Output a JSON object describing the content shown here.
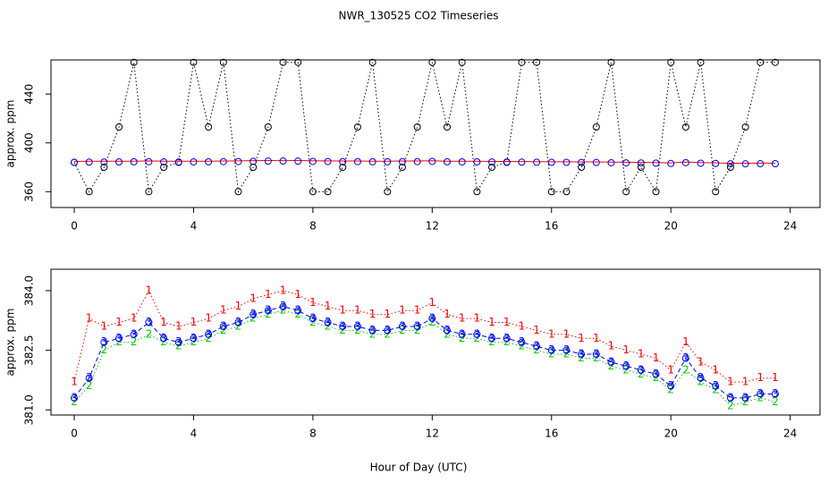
{
  "title": "NWR_130525  CO2 Timeseries",
  "xlabel": "Hour of Day (UTC)",
  "chart_data": [
    {
      "type": "scatter",
      "ylabel": "approx. ppm",
      "xlim": [
        -0.78,
        25.0
      ],
      "xticks": [
        0,
        4,
        8,
        12,
        16,
        20,
        24
      ],
      "ylim": [
        347,
        468
      ],
      "yticks": [
        360,
        400,
        440
      ],
      "x": [
        0,
        0.5,
        1,
        1.5,
        2,
        2.5,
        3,
        3.5,
        4,
        4.5,
        5,
        5.5,
        6,
        6.5,
        7,
        7.5,
        8,
        8.5,
        9,
        9.5,
        10,
        10.5,
        11,
        11.5,
        12,
        12.5,
        13,
        13.5,
        14,
        14.5,
        15,
        15.5,
        16,
        16.5,
        17,
        17.5,
        18,
        18.5,
        19,
        19.5,
        20,
        20.5,
        21,
        21.5,
        22,
        22.5,
        23,
        23.5
      ],
      "series": [
        {
          "color": "#000000",
          "line_style": "dotted",
          "point": "circle",
          "values": [
            384,
            360,
            380,
            413,
            466,
            360,
            380,
            384,
            466,
            413,
            466,
            360,
            380,
            413,
            466,
            466,
            360,
            360,
            380,
            413,
            466,
            360,
            380,
            413,
            466,
            413,
            466,
            360,
            380,
            384,
            466,
            466,
            360,
            360,
            380,
            413,
            466,
            360,
            380,
            360,
            466,
            413,
            466,
            360,
            380,
            413,
            466,
            466
          ]
        },
        {
          "color": "#ff0000",
          "line_style": "solid",
          "values": [
            384.8,
            384.9,
            384.9,
            385,
            385,
            385.2,
            385,
            385,
            384.9,
            385,
            385.1,
            385.2,
            385.4,
            385.5,
            385.6,
            385.5,
            385.3,
            385.2,
            385.1,
            385.1,
            385,
            385,
            385.1,
            385.1,
            385.3,
            385,
            384.9,
            384.9,
            384.8,
            384.8,
            384.7,
            384.6,
            384.5,
            384.5,
            384.4,
            384.4,
            384.2,
            384.1,
            384,
            383.9,
            383.6,
            384.3,
            383.8,
            383.6,
            383.3,
            383.3,
            383.4,
            383.4
          ]
        },
        {
          "color": "#0000ff",
          "point": "circle",
          "values": [
            384,
            384.2,
            384.3,
            384.4,
            384.5,
            384.6,
            384.4,
            384.3,
            384.4,
            384.5,
            384.6,
            384.7,
            384.9,
            385,
            385.1,
            385,
            384.8,
            384.7,
            384.6,
            384.6,
            384.5,
            384.5,
            384.6,
            384.6,
            384.8,
            384.5,
            384.4,
            384.4,
            384.3,
            384.3,
            384.2,
            384.1,
            384,
            384,
            383.9,
            383.9,
            383.7,
            383.6,
            383.5,
            383.4,
            383.1,
            383.8,
            383.3,
            383.1,
            382.8,
            382.8,
            382.9,
            382.9
          ]
        }
      ]
    },
    {
      "type": "line",
      "ylabel": "approx. ppm",
      "xlim": [
        -0.78,
        25.0
      ],
      "xticks": [
        0,
        4,
        8,
        12,
        16,
        20,
        24
      ],
      "ylim": [
        380.87,
        384.54
      ],
      "yticks": [
        {
          "value": 381,
          "label": "381.0"
        },
        {
          "value": 382.5,
          "label": "382.5"
        },
        {
          "value": 384,
          "label": "384.0"
        }
      ],
      "x": [
        0,
        0.5,
        1,
        1.5,
        2,
        2.5,
        3,
        3.5,
        4,
        4.5,
        5,
        5.5,
        6,
        6.5,
        7,
        7.5,
        8,
        8.5,
        9,
        9.5,
        10,
        10.5,
        11,
        11.5,
        12,
        12.5,
        13,
        13.5,
        14,
        14.5,
        15,
        15.5,
        16,
        16.5,
        17,
        17.5,
        18,
        18.5,
        19,
        19.5,
        20,
        20.5,
        21,
        21.5,
        22,
        22.5,
        23,
        23.5
      ],
      "series": [
        {
          "color": "#ff0000",
          "marker": "1",
          "line_style": "dotted",
          "values": [
            381.7,
            383.3,
            383.1,
            383.2,
            383.3,
            384.0,
            383.2,
            383.1,
            383.2,
            383.3,
            383.5,
            383.6,
            383.8,
            383.9,
            384.0,
            383.9,
            383.7,
            383.6,
            383.5,
            383.5,
            383.4,
            383.4,
            383.5,
            383.5,
            383.7,
            383.4,
            383.3,
            383.3,
            383.2,
            383.2,
            383.1,
            383.0,
            382.9,
            382.9,
            382.8,
            382.8,
            382.6,
            382.5,
            382.4,
            382.3,
            382.0,
            382.7,
            382.2,
            382.0,
            381.7,
            381.7,
            381.8,
            381.8
          ]
        },
        {
          "color": "#00cc00",
          "marker": "2",
          "line_style": "dotted",
          "values": [
            381.2,
            381.6,
            382.5,
            382.7,
            382.7,
            382.9,
            382.7,
            382.6,
            382.7,
            382.8,
            383.0,
            383.1,
            383.3,
            383.4,
            383.5,
            383.4,
            383.2,
            383.1,
            383.0,
            383.0,
            382.9,
            382.9,
            383.0,
            383.0,
            383.2,
            382.9,
            382.8,
            382.8,
            382.7,
            382.7,
            382.6,
            382.5,
            382.4,
            382.4,
            382.3,
            382.3,
            382.1,
            382.0,
            381.9,
            381.8,
            381.5,
            382.0,
            381.7,
            381.5,
            381.1,
            381.2,
            381.3,
            381.2
          ]
        },
        {
          "color": "#0000ff",
          "marker": "3",
          "line_style": "dashed",
          "point": "circle",
          "values": [
            381.3,
            381.8,
            382.7,
            382.8,
            382.9,
            383.2,
            382.8,
            382.7,
            382.8,
            382.9,
            383.1,
            383.2,
            383.4,
            383.5,
            383.6,
            383.5,
            383.3,
            383.2,
            383.1,
            383.1,
            383.0,
            383.0,
            383.1,
            383.1,
            383.3,
            383.0,
            382.9,
            382.9,
            382.8,
            382.8,
            382.7,
            382.6,
            382.5,
            382.5,
            382.4,
            382.4,
            382.2,
            382.1,
            382.0,
            381.9,
            381.6,
            382.3,
            381.8,
            381.6,
            381.3,
            381.3,
            381.4,
            381.4
          ]
        }
      ]
    }
  ]
}
